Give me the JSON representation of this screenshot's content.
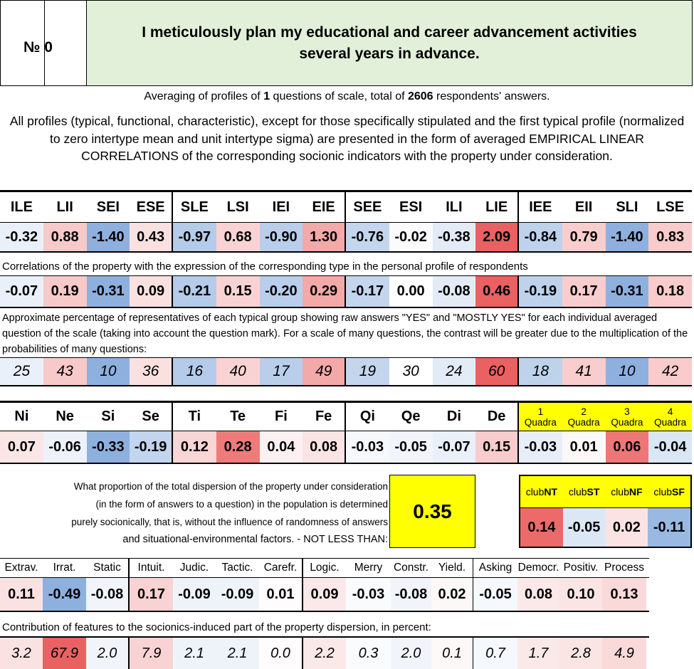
{
  "header": {
    "number_label": "№ 0",
    "title": "I meticulously plan my educational and career advancement activities several years in advance."
  },
  "averaging": {
    "prefix": "Averaging of profiles of ",
    "count": "1",
    "middle": " questions of scale, total of ",
    "respondents": "2606",
    "suffix": " respondents' answers."
  },
  "intro": "All profiles (typical, functional, characteristic), except for those specifically stipulated and the first typical profile (normalized to zero intertype mean and unit intertype sigma) are presented in the form of averaged EMPIRICAL LINEAR CORRELATIONS of the corresponding socionic indicators with the property under consideration.",
  "types": {
    "headers": [
      "ILE",
      "LII",
      "SEI",
      "ESE",
      "SLE",
      "LSI",
      "IEI",
      "EIE",
      "SEE",
      "ESI",
      "ILI",
      "LIE",
      "IEE",
      "EII",
      "SLI",
      "LSE"
    ],
    "normalized": [
      "-0.32",
      "0.88",
      "-1.40",
      "0.43",
      "-0.97",
      "0.68",
      "-0.90",
      "1.30",
      "-0.76",
      "-0.02",
      "-0.38",
      "2.09",
      "-0.84",
      "0.79",
      "-1.40",
      "0.83"
    ],
    "normalized_colors": [
      "#eaf0f9",
      "#f8c9c9",
      "#8eb0de",
      "#fbe0e0",
      "#b4cbea",
      "#f9d3d3",
      "#b8ceeb",
      "#f4a9a9",
      "#c4d6ee",
      "#fbfbfd",
      "#e3ebf7",
      "#ea6161",
      "#bed2ec",
      "#f9cdcd",
      "#8eb0de",
      "#f9cbcb"
    ],
    "correlation_note": "Correlations of the property with the expression of the corresponding type in the personal profile of respondents",
    "correlations": [
      "-0.07",
      "0.19",
      "-0.31",
      "0.09",
      "-0.21",
      "0.15",
      "-0.20",
      "0.29",
      "-0.17",
      "0.00",
      "-0.08",
      "0.46",
      "-0.19",
      "0.17",
      "-0.31",
      "0.18"
    ],
    "correlation_colors": [
      "#eaf0f9",
      "#f8c9c9",
      "#8eb0de",
      "#fbe0e0",
      "#b4cbea",
      "#f9d3d3",
      "#b8ceeb",
      "#f4a9a9",
      "#c4d6ee",
      "#ffffff",
      "#e3ebf7",
      "#ea6161",
      "#bed2ec",
      "#f9cdcd",
      "#8eb0de",
      "#f9cbcb"
    ],
    "percent_note": "Approximate percentage of representatives of each typical group showing raw answers \"YES\" and \"MOSTLY YES\" for each individual averaged question of the scale (taking into account the question mark). For a scale of many questions, the contrast will be greater due to the multiplication of the probabilities of many questions:",
    "percentages": [
      "25",
      "43",
      "10",
      "36",
      "16",
      "40",
      "17",
      "49",
      "19",
      "30",
      "24",
      "60",
      "18",
      "41",
      "10",
      "42"
    ],
    "percentage_colors": [
      "#eaf0f9",
      "#f8c9c9",
      "#8eb0de",
      "#fbe0e0",
      "#b4cbea",
      "#f9d3d3",
      "#b8ceeb",
      "#f4a9a9",
      "#c4d6ee",
      "#ffffff",
      "#e3ebf7",
      "#ea6161",
      "#bed2ec",
      "#f9cdcd",
      "#8eb0de",
      "#f9cbcb"
    ]
  },
  "functions": {
    "headers": [
      "Ni",
      "Ne",
      "Si",
      "Se",
      "Ti",
      "Te",
      "Fi",
      "Fe",
      "Qi",
      "Qe",
      "Di",
      "De"
    ],
    "quadras": [
      {
        "n": "1",
        "label": "Quadra"
      },
      {
        "n": "2",
        "label": "Quadra"
      },
      {
        "n": "3",
        "label": "Quadra"
      },
      {
        "n": "4",
        "label": "Quadra"
      }
    ],
    "values": [
      "0.07",
      "-0.06",
      "-0.33",
      "-0.19",
      "0.12",
      "0.28",
      "0.04",
      "0.08",
      "-0.03",
      "-0.05",
      "-0.07",
      "0.15",
      "-0.03",
      "0.01",
      "0.06",
      "-0.04"
    ],
    "colors": [
      "#fbe6e6",
      "#edf2fa",
      "#8eb0de",
      "#c2d5ee",
      "#f9d6d6",
      "#ee7a7a",
      "#fdf0f0",
      "#fbe4e4",
      "#f6f9fc",
      "#f1f5fb",
      "#eaf0f9",
      "#f8cccc",
      "#e7eef8",
      "#fdf8f8",
      "#ee7676",
      "#dbe6f5"
    ]
  },
  "dispersion": {
    "lines": [
      "What proportion of the total dispersion of the property under consideration",
      "(in the form of answers to a question) in the population is determined",
      "purely socionically, that is, without the influence of randomness of answers",
      "and situational-environmental factors. - NOT LESS THAN:"
    ],
    "value": "0.35"
  },
  "clubs": {
    "prefix": "club",
    "names": [
      "NT",
      "ST",
      "NF",
      "SF"
    ],
    "values": [
      "0.14",
      "-0.05",
      "0.02",
      "-0.11"
    ],
    "colors": [
      "#ec6a6a",
      "#dce7f5",
      "#fbe3e3",
      "#9ab9e2"
    ]
  },
  "traits": {
    "headers": [
      "Extrav.",
      "Irrat.",
      "Static",
      "Intuit.",
      "Judic.",
      "Tactic.",
      "Carefr.",
      "Logic.",
      "Merry",
      "Constr.",
      "Yield.",
      "Asking",
      "Democr.",
      "Positiv.",
      "Process"
    ],
    "values": [
      "0.11",
      "-0.49",
      "-0.08",
      "0.17",
      "-0.09",
      "-0.09",
      "0.01",
      "0.09",
      "-0.03",
      "-0.08",
      "0.02",
      "-0.05",
      "0.08",
      "0.10",
      "0.13"
    ],
    "colors": [
      "#fbe2e2",
      "#8eb0de",
      "#f1f5fb",
      "#f9d3d3",
      "#eef3fa",
      "#eef3fa",
      "#fefcfc",
      "#fbe8e8",
      "#f9fbfd",
      "#f1f5fb",
      "#fdf8f8",
      "#f5f8fc",
      "#fbe9e9",
      "#fbe4e4",
      "#fad9d9"
    ],
    "contribution_note": "Contribution of features to the socionics-induced part of the property dispersion, in percent:",
    "contributions": [
      "3.2",
      "67.9",
      "2.0",
      "7.9",
      "2.1",
      "2.1",
      "0.0",
      "2.2",
      "0.3",
      "2.0",
      "0.1",
      "0.7",
      "1.7",
      "2.8",
      "4.9"
    ],
    "contribution_colors": [
      "#fbe2e2",
      "#ea6161",
      "#f1f5fb",
      "#f9d3d3",
      "#eef3fa",
      "#eef3fa",
      "#fefcfc",
      "#fbe8e8",
      "#f9fbfd",
      "#f1f5fb",
      "#fdf8f8",
      "#f5f8fc",
      "#fbe9e9",
      "#fbe4e4",
      "#fad9d9"
    ]
  }
}
